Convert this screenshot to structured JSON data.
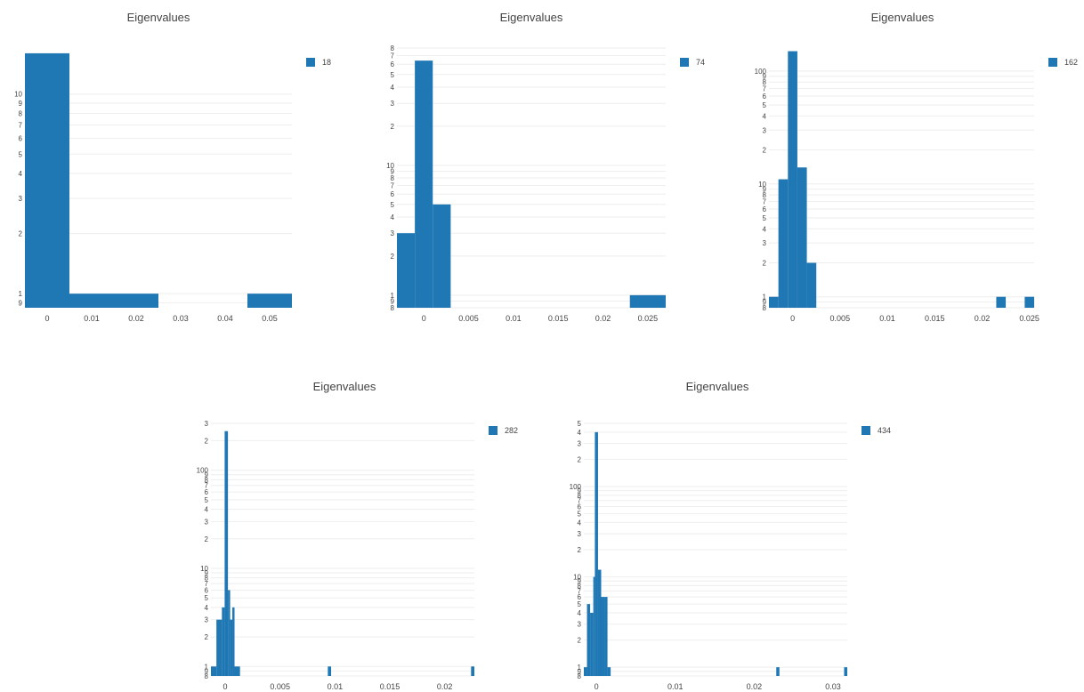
{
  "chart_data": [
    {
      "type": "bar",
      "title": "Eigenvalues",
      "legend": "18",
      "y_scale": "log",
      "y_ticks": [
        {
          "v": 0.9,
          "l": "9"
        },
        {
          "v": 1,
          "l": "1"
        },
        {
          "v": 2,
          "l": "2"
        },
        {
          "v": 3,
          "l": "3"
        },
        {
          "v": 4,
          "l": "4"
        },
        {
          "v": 5,
          "l": "5"
        },
        {
          "v": 6,
          "l": "6"
        },
        {
          "v": 7,
          "l": "7"
        },
        {
          "v": 8,
          "l": "8"
        },
        {
          "v": 9,
          "l": "9"
        },
        {
          "v": 10,
          "l": "10"
        }
      ],
      "ylim": [
        0.85,
        17
      ],
      "x_ticks": [
        {
          "v": 0,
          "l": "0"
        },
        {
          "v": 0.01,
          "l": "0.01"
        },
        {
          "v": 0.02,
          "l": "0.02"
        },
        {
          "v": 0.03,
          "l": "0.03"
        },
        {
          "v": 0.04,
          "l": "0.04"
        },
        {
          "v": 0.05,
          "l": "0.05"
        }
      ],
      "xlim": [
        -0.005,
        0.055
      ],
      "bins": [
        {
          "x0": -0.005,
          "x1": 0.005,
          "y": 16
        },
        {
          "x0": 0.005,
          "x1": 0.025,
          "y": 1
        },
        {
          "x0": 0.045,
          "x1": 0.055,
          "y": 1
        }
      ]
    },
    {
      "type": "bar",
      "title": "Eigenvalues",
      "legend": "74",
      "y_scale": "log",
      "y_ticks": [
        {
          "v": 0.8,
          "l": "8"
        },
        {
          "v": 0.9,
          "l": "9"
        },
        {
          "v": 1,
          "l": "1"
        },
        {
          "v": 2,
          "l": "2"
        },
        {
          "v": 3,
          "l": "3"
        },
        {
          "v": 4,
          "l": "4"
        },
        {
          "v": 5,
          "l": "5"
        },
        {
          "v": 6,
          "l": "6"
        },
        {
          "v": 7,
          "l": "7"
        },
        {
          "v": 8,
          "l": "8"
        },
        {
          "v": 9,
          "l": "9"
        },
        {
          "v": 10,
          "l": "10"
        },
        {
          "v": 20,
          "l": "2"
        },
        {
          "v": 30,
          "l": "3"
        },
        {
          "v": 40,
          "l": "4"
        },
        {
          "v": 50,
          "l": "5"
        },
        {
          "v": 60,
          "l": "6"
        },
        {
          "v": 70,
          "l": "7"
        },
        {
          "v": 80,
          "l": "8"
        }
      ],
      "ylim": [
        0.8,
        80
      ],
      "x_ticks": [
        {
          "v": 0,
          "l": "0"
        },
        {
          "v": 0.005,
          "l": "0.005"
        },
        {
          "v": 0.01,
          "l": "0.01"
        },
        {
          "v": 0.015,
          "l": "0.015"
        },
        {
          "v": 0.02,
          "l": "0.02"
        },
        {
          "v": 0.025,
          "l": "0.025"
        }
      ],
      "xlim": [
        -0.003,
        0.027
      ],
      "bins": [
        {
          "x0": -0.003,
          "x1": -0.001,
          "y": 3
        },
        {
          "x0": -0.001,
          "x1": 0.001,
          "y": 64
        },
        {
          "x0": 0.001,
          "x1": 0.003,
          "y": 5
        },
        {
          "x0": 0.023,
          "x1": 0.027,
          "y": 1
        }
      ]
    },
    {
      "type": "bar",
      "title": "Eigenvalues",
      "legend": "162",
      "y_scale": "log",
      "y_ticks": [
        {
          "v": 0.8,
          "l": "8"
        },
        {
          "v": 0.9,
          "l": "9"
        },
        {
          "v": 1,
          "l": "1"
        },
        {
          "v": 2,
          "l": "2"
        },
        {
          "v": 3,
          "l": "3"
        },
        {
          "v": 4,
          "l": "4"
        },
        {
          "v": 5,
          "l": "5"
        },
        {
          "v": 6,
          "l": "6"
        },
        {
          "v": 7,
          "l": "7"
        },
        {
          "v": 8,
          "l": "8"
        },
        {
          "v": 9,
          "l": "9"
        },
        {
          "v": 10,
          "l": "10"
        },
        {
          "v": 20,
          "l": "2"
        },
        {
          "v": 30,
          "l": "3"
        },
        {
          "v": 40,
          "l": "4"
        },
        {
          "v": 50,
          "l": "5"
        },
        {
          "v": 60,
          "l": "6"
        },
        {
          "v": 70,
          "l": "7"
        },
        {
          "v": 80,
          "l": "8"
        },
        {
          "v": 90,
          "l": "9"
        },
        {
          "v": 100,
          "l": "100"
        }
      ],
      "ylim": [
        0.8,
        160
      ],
      "x_ticks": [
        {
          "v": 0,
          "l": "0"
        },
        {
          "v": 0.005,
          "l": "0.005"
        },
        {
          "v": 0.01,
          "l": "0.01"
        },
        {
          "v": 0.015,
          "l": "0.015"
        },
        {
          "v": 0.02,
          "l": "0.02"
        },
        {
          "v": 0.025,
          "l": "0.025"
        }
      ],
      "xlim": [
        -0.0025,
        0.0255
      ],
      "bins": [
        {
          "x0": -0.0025,
          "x1": -0.0015,
          "y": 1
        },
        {
          "x0": -0.0015,
          "x1": -0.0005,
          "y": 11
        },
        {
          "x0": -0.0005,
          "x1": 0.0005,
          "y": 150
        },
        {
          "x0": 0.0005,
          "x1": 0.0015,
          "y": 14
        },
        {
          "x0": 0.0015,
          "x1": 0.0025,
          "y": 2
        },
        {
          "x0": 0.0215,
          "x1": 0.0225,
          "y": 1
        },
        {
          "x0": 0.0245,
          "x1": 0.0255,
          "y": 1
        }
      ]
    },
    {
      "type": "bar",
      "title": "Eigenvalues",
      "legend": "282",
      "y_scale": "log",
      "y_ticks": [
        {
          "v": 0.8,
          "l": "8"
        },
        {
          "v": 0.9,
          "l": "9"
        },
        {
          "v": 1,
          "l": "1"
        },
        {
          "v": 2,
          "l": "2"
        },
        {
          "v": 3,
          "l": "3"
        },
        {
          "v": 4,
          "l": "4"
        },
        {
          "v": 5,
          "l": "5"
        },
        {
          "v": 6,
          "l": "6"
        },
        {
          "v": 7,
          "l": "7"
        },
        {
          "v": 8,
          "l": "8"
        },
        {
          "v": 9,
          "l": "9"
        },
        {
          "v": 10,
          "l": "10"
        },
        {
          "v": 20,
          "l": "2"
        },
        {
          "v": 30,
          "l": "3"
        },
        {
          "v": 40,
          "l": "4"
        },
        {
          "v": 50,
          "l": "5"
        },
        {
          "v": 60,
          "l": "6"
        },
        {
          "v": 70,
          "l": "7"
        },
        {
          "v": 80,
          "l": "8"
        },
        {
          "v": 90,
          "l": "9"
        },
        {
          "v": 100,
          "l": "100"
        },
        {
          "v": 200,
          "l": "2"
        },
        {
          "v": 300,
          "l": "3"
        }
      ],
      "ylim": [
        0.8,
        300
      ],
      "x_ticks": [
        {
          "v": 0,
          "l": "0"
        },
        {
          "v": 0.005,
          "l": "0.005"
        },
        {
          "v": 0.01,
          "l": "0.01"
        },
        {
          "v": 0.015,
          "l": "0.015"
        },
        {
          "v": 0.02,
          "l": "0.02"
        }
      ],
      "xlim": [
        -0.0013,
        0.0227
      ],
      "bins": [
        {
          "x0": -0.0013,
          "x1": -0.0008,
          "y": 1
        },
        {
          "x0": -0.0008,
          "x1": -0.0003,
          "y": 3
        },
        {
          "x0": -0.0003,
          "x1": -5e-05,
          "y": 4
        },
        {
          "x0": -5e-05,
          "x1": 0.00025,
          "y": 250
        },
        {
          "x0": 0.00025,
          "x1": 0.00045,
          "y": 6
        },
        {
          "x0": 0.00045,
          "x1": 0.00065,
          "y": 3
        },
        {
          "x0": 0.00065,
          "x1": 0.00085,
          "y": 4
        },
        {
          "x0": 0.00085,
          "x1": 0.00105,
          "y": 1
        },
        {
          "x0": 0.00105,
          "x1": 0.00135,
          "y": 1
        },
        {
          "x0": 0.00935,
          "x1": 0.00965,
          "y": 1
        },
        {
          "x0": 0.0224,
          "x1": 0.0227,
          "y": 1
        }
      ]
    },
    {
      "type": "bar",
      "title": "Eigenvalues",
      "legend": "434",
      "y_scale": "log",
      "y_ticks": [
        {
          "v": 0.8,
          "l": "8"
        },
        {
          "v": 0.9,
          "l": "9"
        },
        {
          "v": 1,
          "l": "1"
        },
        {
          "v": 2,
          "l": "2"
        },
        {
          "v": 3,
          "l": "3"
        },
        {
          "v": 4,
          "l": "4"
        },
        {
          "v": 5,
          "l": "5"
        },
        {
          "v": 6,
          "l": "6"
        },
        {
          "v": 7,
          "l": "7"
        },
        {
          "v": 8,
          "l": "8"
        },
        {
          "v": 9,
          "l": "9"
        },
        {
          "v": 10,
          "l": "10"
        },
        {
          "v": 20,
          "l": "2"
        },
        {
          "v": 30,
          "l": "3"
        },
        {
          "v": 40,
          "l": "4"
        },
        {
          "v": 50,
          "l": "5"
        },
        {
          "v": 60,
          "l": "6"
        },
        {
          "v": 70,
          "l": "7"
        },
        {
          "v": 80,
          "l": "8"
        },
        {
          "v": 90,
          "l": "9"
        },
        {
          "v": 100,
          "l": "100"
        },
        {
          "v": 200,
          "l": "2"
        },
        {
          "v": 300,
          "l": "3"
        },
        {
          "v": 400,
          "l": "4"
        },
        {
          "v": 500,
          "l": "5"
        }
      ],
      "ylim": [
        0.8,
        500
      ],
      "x_ticks": [
        {
          "v": 0,
          "l": "0"
        },
        {
          "v": 0.01,
          "l": "0.01"
        },
        {
          "v": 0.02,
          "l": "0.02"
        },
        {
          "v": 0.03,
          "l": "0.03"
        }
      ],
      "xlim": [
        -0.0016,
        0.0318
      ],
      "bins": [
        {
          "x0": -0.0016,
          "x1": -0.0012,
          "y": 1
        },
        {
          "x0": -0.0012,
          "x1": -0.0008,
          "y": 5
        },
        {
          "x0": -0.0008,
          "x1": -0.0004,
          "y": 4
        },
        {
          "x0": -0.0004,
          "x1": -0.0002,
          "y": 10
        },
        {
          "x0": -0.0002,
          "x1": 0.0002,
          "y": 400
        },
        {
          "x0": 0.0002,
          "x1": 0.0006,
          "y": 12
        },
        {
          "x0": 0.0006,
          "x1": 0.001,
          "y": 6
        },
        {
          "x0": 0.001,
          "x1": 0.0014,
          "y": 6
        },
        {
          "x0": 0.0014,
          "x1": 0.0018,
          "y": 1
        },
        {
          "x0": 0.0228,
          "x1": 0.0232,
          "y": 1
        },
        {
          "x0": 0.0314,
          "x1": 0.0318,
          "y": 1
        }
      ]
    }
  ],
  "colors": {
    "bar": "#1f77b4",
    "grid": "#eeeeee",
    "text": "#444444"
  }
}
